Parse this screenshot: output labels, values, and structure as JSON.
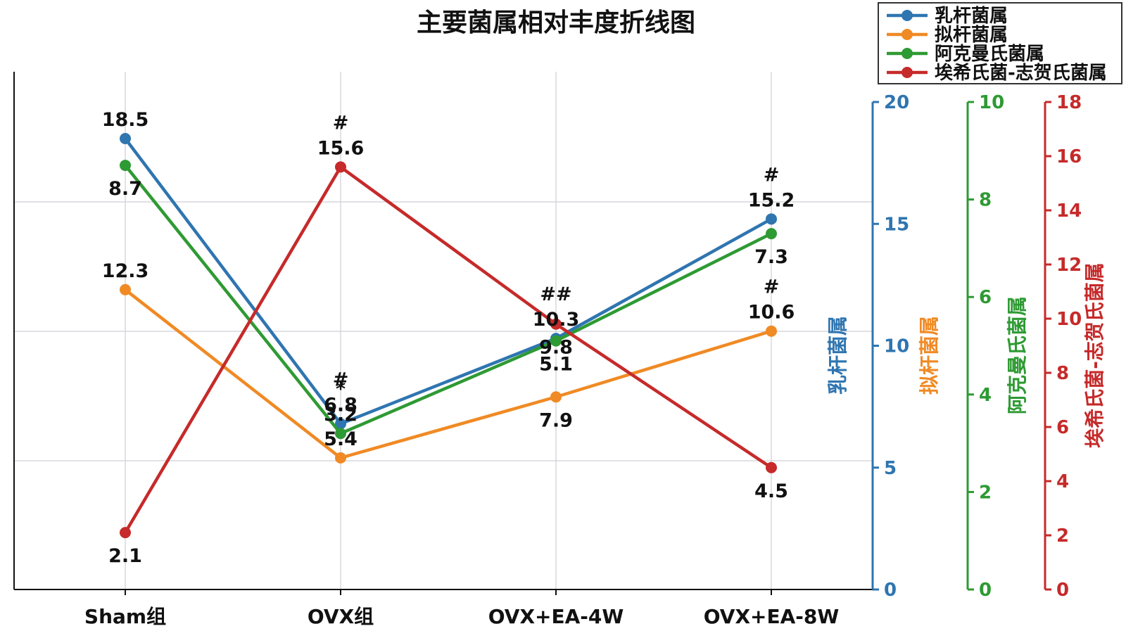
{
  "chart_data": {
    "type": "line",
    "title": "主要菌属相对丰度折线图",
    "categories": [
      "Sham组",
      "OVX组",
      "OVX+EA-4W",
      "OVX+EA-8W"
    ],
    "series": [
      {
        "name": "乳杆菌属",
        "color": "#2f75b0",
        "axis_title": "乳杆菌属",
        "axis_range": [
          0,
          20
        ],
        "axis_ticks": [
          "0",
          "5",
          "10",
          "15",
          "20"
        ],
        "show_axis": true,
        "values": [
          18.5,
          6.8,
          10.3,
          15.2
        ],
        "labels": [
          "18.5",
          "6.8",
          "10.3",
          "15.2"
        ],
        "marks": [
          "",
          "#",
          "##",
          "#"
        ]
      },
      {
        "name": "拟杆菌属",
        "color": "#f08a24",
        "axis_title": "拟杆菌属",
        "axis_range": [
          0,
          20
        ],
        "axis_ticks": [],
        "show_axis": false,
        "values": [
          12.3,
          5.4,
          7.9,
          10.6
        ],
        "labels": [
          "12.3",
          "5.4",
          "7.9",
          "10.6"
        ],
        "marks": [
          "",
          "",
          "",
          "#"
        ]
      },
      {
        "name": "阿克曼氏菌属",
        "color": "#2e9a33",
        "axis_title": "阿克曼氏菌属",
        "axis_range": [
          0,
          10
        ],
        "axis_ticks": [
          "0",
          "2",
          "4",
          "6",
          "8",
          "10"
        ],
        "show_axis": true,
        "values": [
          8.7,
          3.2,
          5.1,
          7.3
        ],
        "labels": [
          "8.7",
          "3.2",
          "5.1",
          "7.3"
        ],
        "marks": [
          "",
          "*",
          "",
          ""
        ]
      },
      {
        "name": "埃希氏菌-志贺氏菌属",
        "color": "#c62a2a",
        "axis_title": "埃希氏菌-志贺氏菌属",
        "axis_range": [
          0,
          18
        ],
        "axis_ticks": [
          "0",
          "2",
          "4",
          "6",
          "8",
          "10",
          "12",
          "14",
          "16",
          "18"
        ],
        "show_axis": true,
        "values": [
          2.1,
          15.6,
          9.8,
          4.5
        ],
        "labels": [
          "2.1",
          "15.6",
          "9.8",
          "4.5"
        ],
        "marks": [
          "",
          "#",
          "",
          ""
        ]
      }
    ],
    "grid": true,
    "legend_position": "top-right"
  }
}
